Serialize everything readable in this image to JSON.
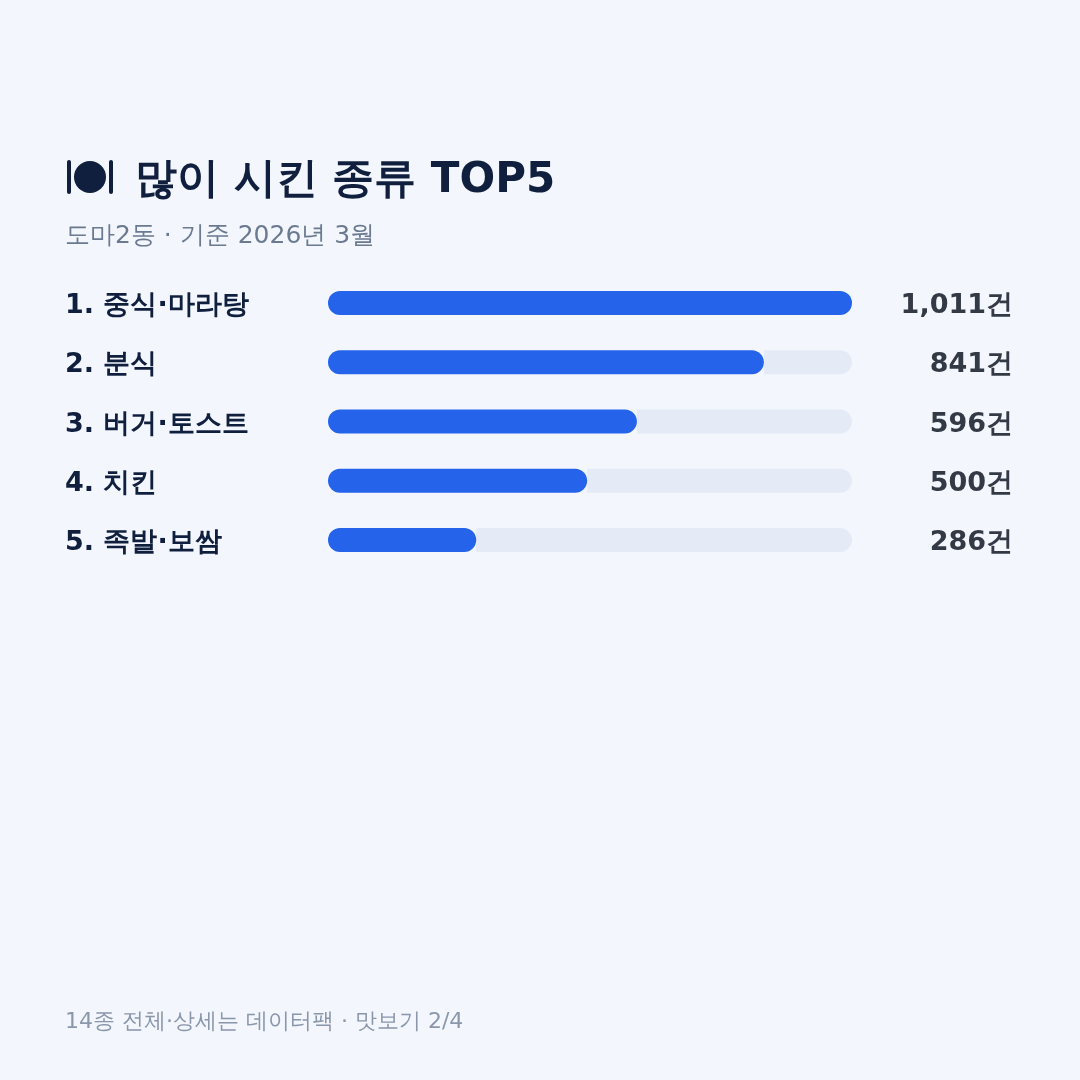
{
  "chart_data": {
    "type": "bar",
    "orientation": "horizontal",
    "title": "많이 시킨 종류 TOP5",
    "subtitle": "도마2동 · 기준 2026년 3월",
    "categories": [
      "1. 중식·마라탕",
      "2. 분식",
      "3. 버거·토스트",
      "4. 치킨",
      "5. 족발·보쌈"
    ],
    "values": [
      1011,
      841,
      596,
      500,
      286
    ],
    "value_labels": [
      "1,011건",
      "841건",
      "596건",
      "500건",
      "286건"
    ],
    "color": "#2563eb",
    "annotations": [
      "14종 전체·상세는 데이터팩 · 맛보기 2/4"
    ]
  }
}
